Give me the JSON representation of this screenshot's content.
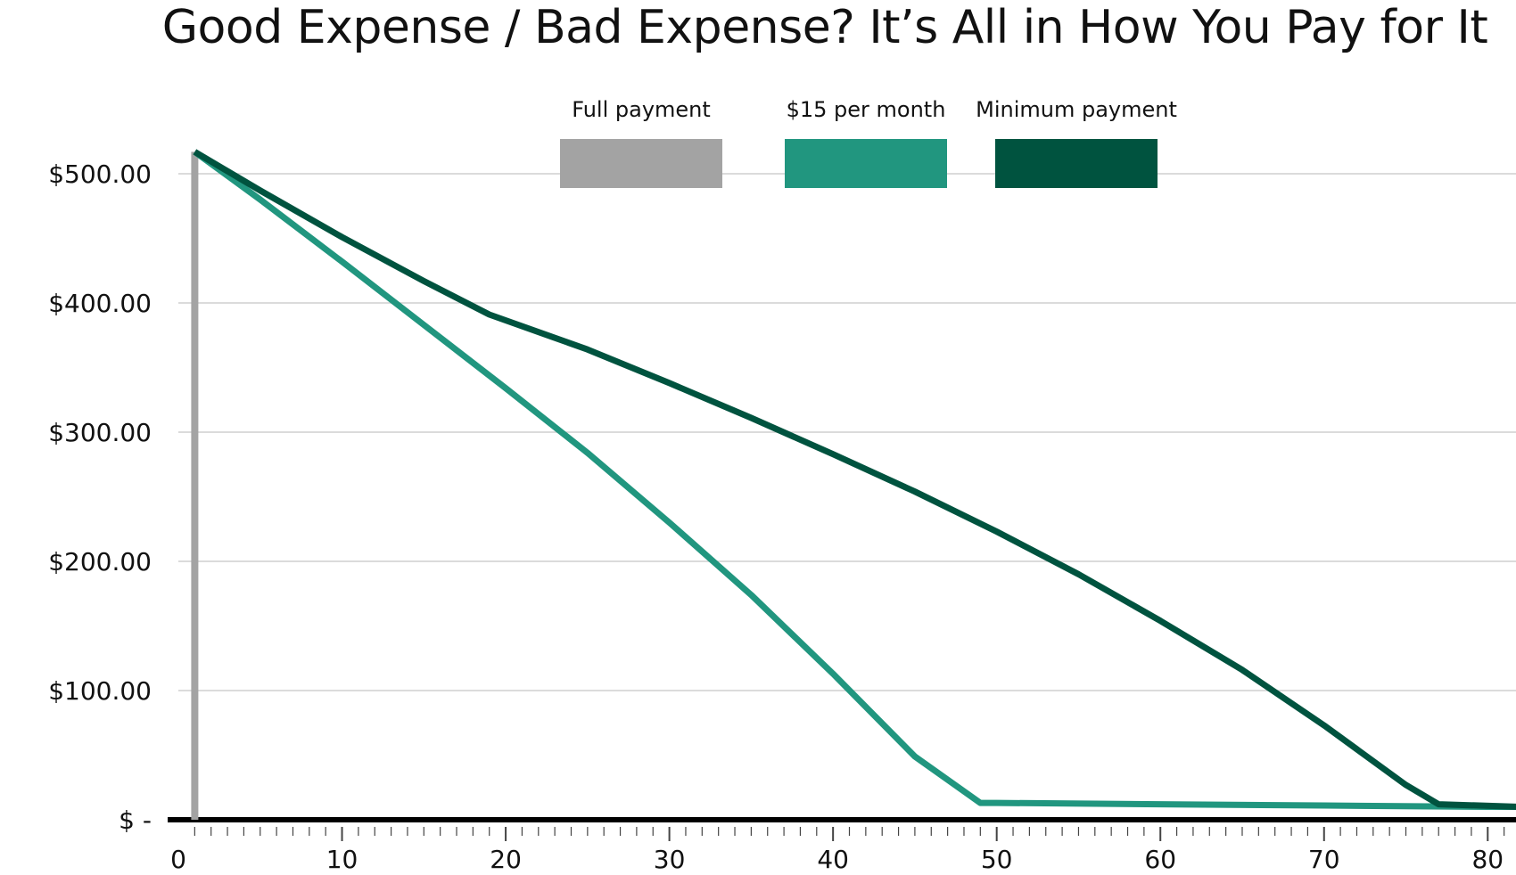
{
  "chart_data": {
    "type": "line",
    "title": "Good Expense / Bad Expense? It’s All in How You Pay for It",
    "xlabel": "",
    "ylabel": "",
    "xlim": [
      0,
      82
    ],
    "ylim": [
      0,
      540
    ],
    "x_ticks": [
      0,
      10,
      20,
      30,
      40,
      50,
      60,
      70,
      80
    ],
    "y_ticks": [
      {
        "value": 0,
        "label": "$ -"
      },
      {
        "value": 100,
        "label": "$100.00"
      },
      {
        "value": 200,
        "label": "$200.00"
      },
      {
        "value": 300,
        "label": "$300.00"
      },
      {
        "value": 400,
        "label": "$400.00"
      },
      {
        "value": 500,
        "label": "$500.00"
      }
    ],
    "grid": {
      "horizontal": true,
      "vertical": false
    },
    "legend_position": "top-center",
    "series": [
      {
        "name": "Full payment",
        "color": "#a3a3a3",
        "x": [
          1,
          1
        ],
        "y": [
          517,
          0
        ]
      },
      {
        "name": "$15 per month",
        "color": "#21967f",
        "x": [
          1,
          5,
          10,
          15,
          20,
          25,
          30,
          35,
          40,
          45,
          49,
          50,
          60,
          70,
          80,
          82
        ],
        "y": [
          517,
          480,
          432,
          383,
          334,
          284,
          230,
          174,
          113,
          49,
          13,
          13,
          12,
          11,
          10,
          10
        ]
      },
      {
        "name": "Minimum payment",
        "color": "#00533f",
        "x": [
          1,
          5,
          10,
          15,
          19,
          25,
          30,
          35,
          40,
          45,
          50,
          55,
          60,
          65,
          70,
          75,
          77,
          82
        ],
        "y": [
          517,
          487,
          451,
          417,
          391,
          364,
          338,
          311,
          283,
          254,
          223,
          190,
          154,
          116,
          73,
          27,
          12,
          10
        ]
      }
    ]
  }
}
